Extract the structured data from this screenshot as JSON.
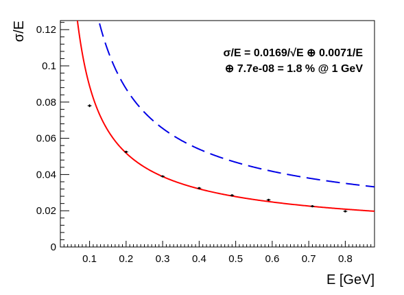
{
  "chart_data": {
    "type": "scatter",
    "xlabel": "E [GeV]",
    "ylabel": "σ/E",
    "xlim": [
      0.02,
      0.88
    ],
    "ylim": [
      0,
      0.125
    ],
    "x_ticks": [
      0.1,
      0.2,
      0.3,
      0.4,
      0.5,
      0.6,
      0.7,
      0.8
    ],
    "x_tick_labels": [
      "0.1",
      "0.2",
      "0.3",
      "0.4",
      "0.5",
      "0.6",
      "0.7",
      "0.8"
    ],
    "y_ticks": [
      0,
      0.02,
      0.04,
      0.06,
      0.08,
      0.1,
      0.12
    ],
    "y_tick_labels": [
      "0",
      "0.02",
      "0.04",
      "0.06",
      "0.08",
      "0.1",
      "0.12"
    ],
    "grid": false,
    "annotation": {
      "line1": "σ/E = 0.0169/√E ⊕ 0.0071/E",
      "line2": "⊕ 7.7e-08 = 1.8 % @ 1 GeV"
    },
    "points": {
      "x": [
        0.1,
        0.2,
        0.3,
        0.4,
        0.49,
        0.59,
        0.71,
        0.8
      ],
      "y": [
        0.078,
        0.0525,
        0.039,
        0.0325,
        0.0285,
        0.026,
        0.0225,
        0.0197
      ],
      "yerr": [
        0.0008,
        0.0006,
        0.0005,
        0.0005,
        0.0005,
        0.0004,
        0.0004,
        0.0004
      ],
      "color": "#000000"
    },
    "series": [
      {
        "style": "solid",
        "color": "#ff0000",
        "model": "quadrature",
        "a": 0.0169,
        "b": 0.0071,
        "c": 7.7e-08
      },
      {
        "style": "dashed",
        "color": "#0000e6",
        "model": "quadrature",
        "a": 0.0284,
        "b": 0.012,
        "c": 0.0
      }
    ]
  }
}
